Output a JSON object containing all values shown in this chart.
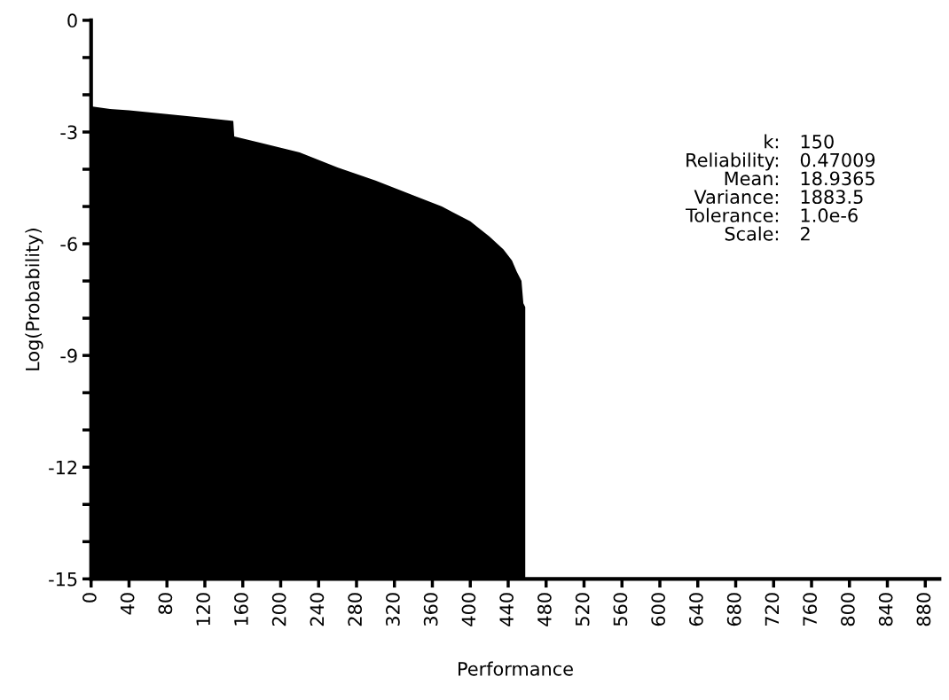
{
  "chart_data": {
    "type": "area",
    "xlabel": "Performance",
    "ylabel": "Log(Probability)",
    "x": [
      0,
      0,
      20,
      40,
      80,
      120,
      150,
      151,
      180,
      220,
      260,
      300,
      340,
      370,
      400,
      420,
      435,
      444,
      449,
      454,
      456,
      458,
      458
    ],
    "series": [
      {
        "color": "#000000",
        "values": [
          -15,
          -2.31,
          -2.38,
          -2.42,
          -2.52,
          -2.62,
          -2.7,
          -3.12,
          -3.3,
          -3.55,
          -3.95,
          -4.3,
          -4.7,
          -5.0,
          -5.4,
          -5.8,
          -6.15,
          -6.45,
          -6.75,
          -7.0,
          -7.6,
          -7.7,
          -15
        ]
      }
    ],
    "xlim": [
      0,
      895
    ],
    "ylim": [
      -15,
      0
    ],
    "xticks": [
      0,
      40,
      80,
      120,
      160,
      200,
      240,
      280,
      320,
      360,
      400,
      440,
      480,
      520,
      560,
      600,
      640,
      680,
      720,
      760,
      800,
      840,
      880
    ],
    "yticks": [
      0,
      {
        "value": -1,
        "label": null
      },
      {
        "value": -2,
        "label": null
      },
      -3,
      {
        "value": -4,
        "label": null
      },
      {
        "value": -5,
        "label": null
      },
      -6,
      {
        "value": -7,
        "label": null
      },
      {
        "value": -8,
        "label": null
      },
      -9,
      {
        "value": -10,
        "label": null
      },
      {
        "value": -11,
        "label": null
      },
      -12,
      {
        "value": -13,
        "label": null
      },
      {
        "value": -14,
        "label": null
      },
      -15
    ],
    "annotations": [
      "k: 150",
      "Reliability: 0.47009",
      "Mean: 18.9365",
      "Variance: 1883.5",
      "Tolerance: 1.0e-6",
      "Scale: 2"
    ],
    "grid": false,
    "legend": false
  }
}
